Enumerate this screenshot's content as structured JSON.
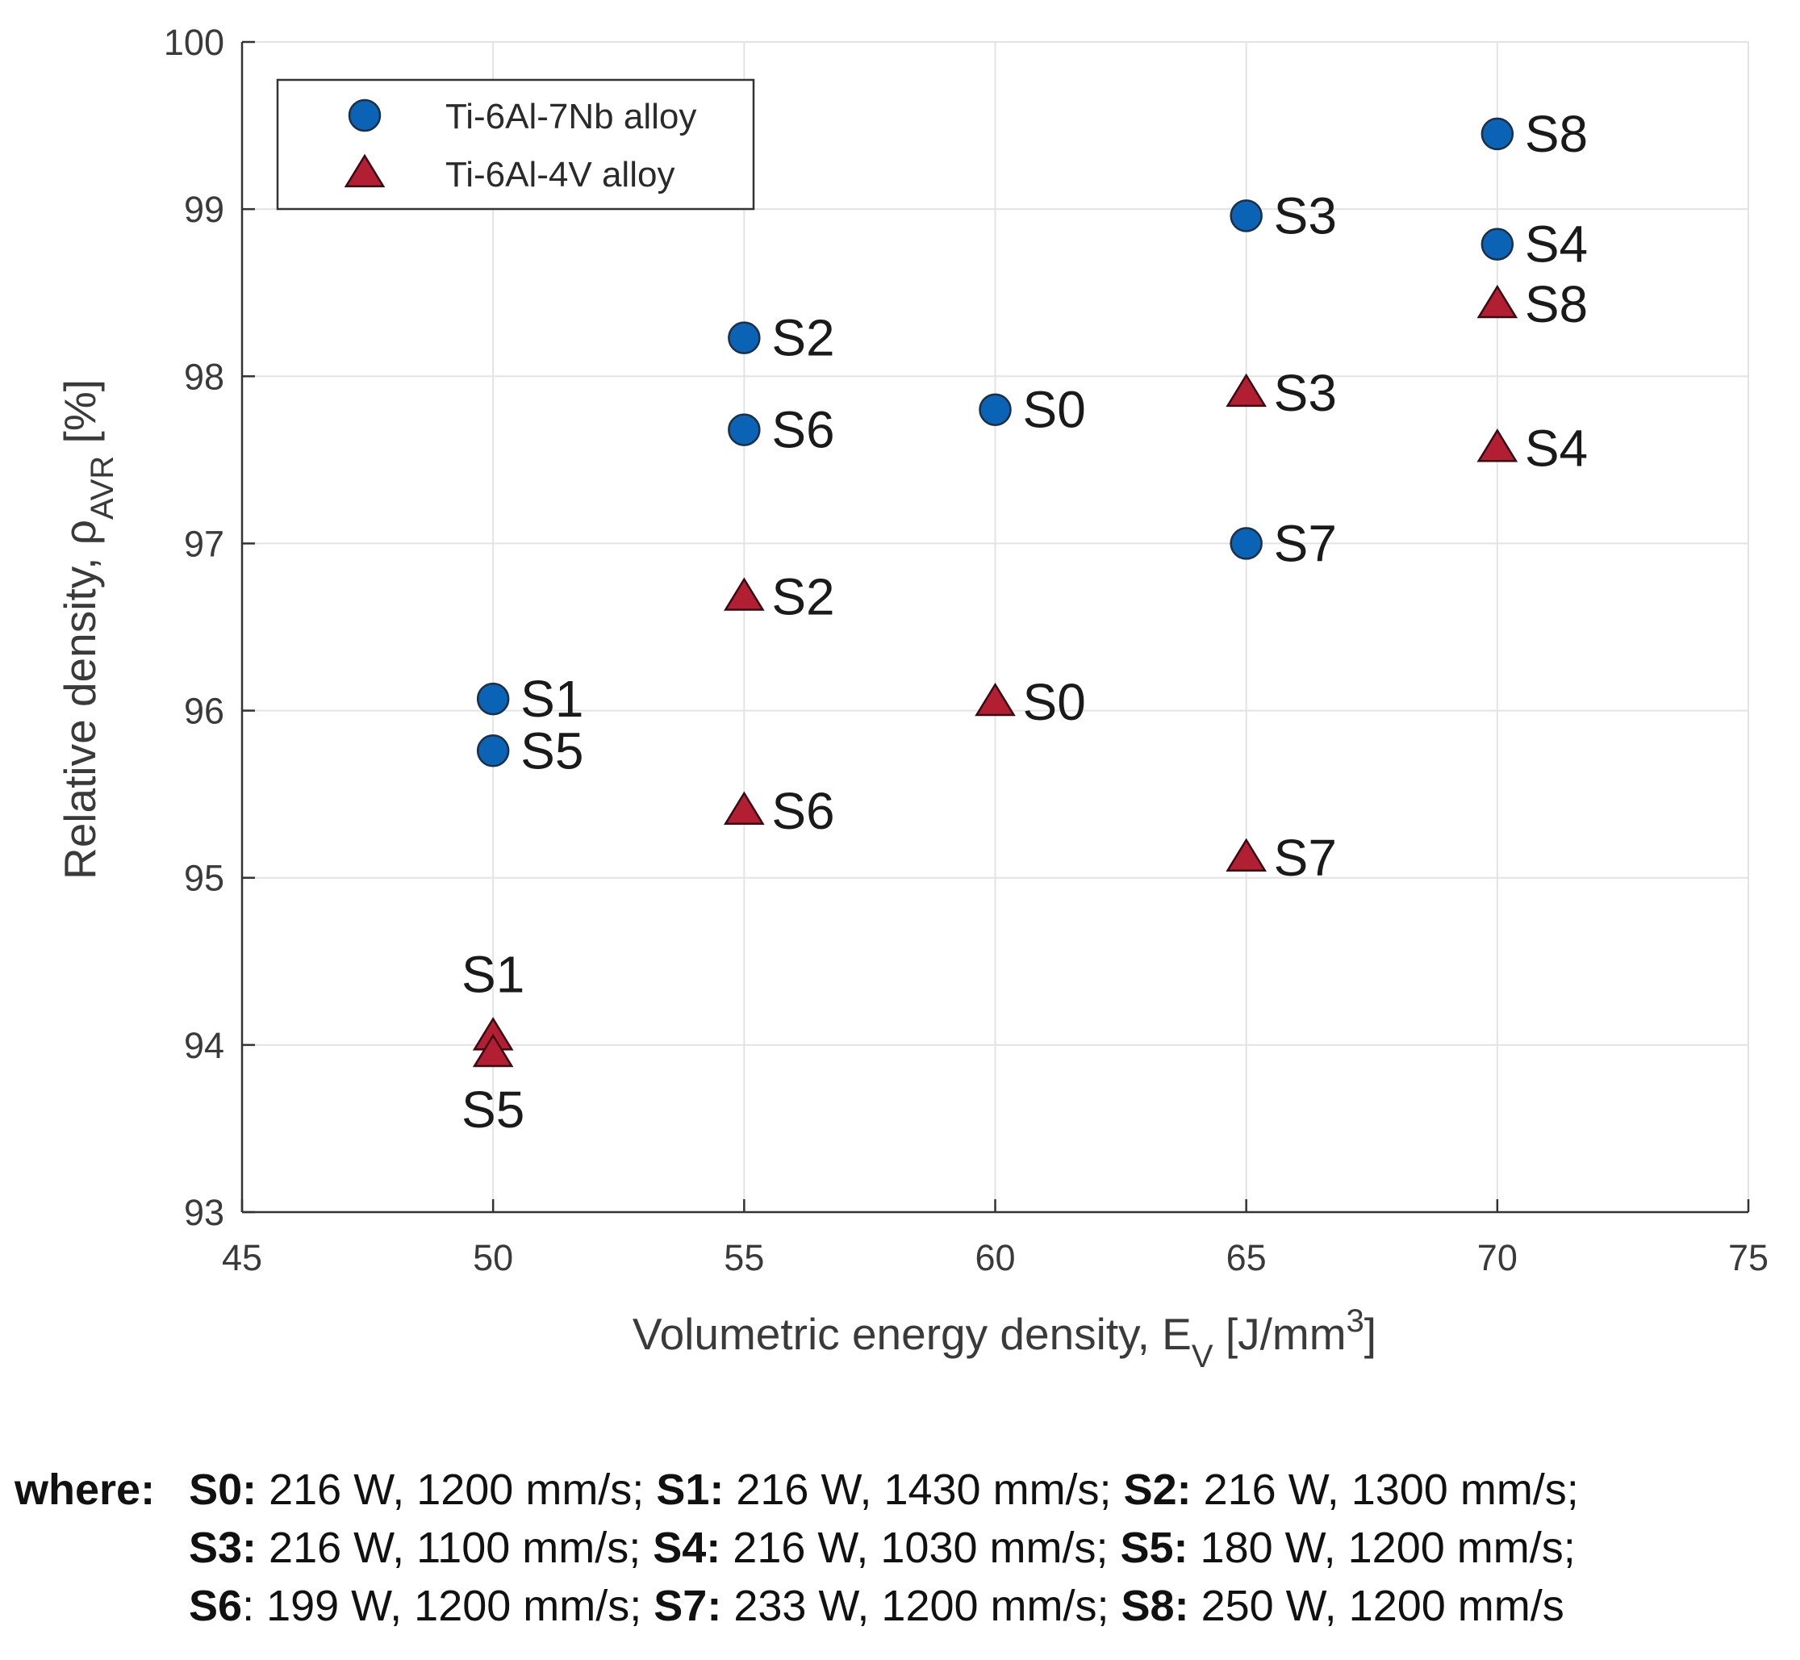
{
  "chart_data": {
    "type": "scatter",
    "xlabel": {
      "main": "Volumetric energy density, E",
      "subscript": "V",
      "unit_open": " [J/mm",
      "superscript": "3",
      "unit_close": "]"
    },
    "ylabel": {
      "main": "Relative density, ρ",
      "subscript": "AVR",
      "unit": " [%]"
    },
    "xlim": [
      45,
      75
    ],
    "ylim": [
      93,
      100
    ],
    "xticks": [
      "45",
      "50",
      "55",
      "60",
      "65",
      "70",
      "75"
    ],
    "yticks": [
      "93",
      "94",
      "95",
      "96",
      "97",
      "98",
      "99",
      "100"
    ],
    "grid": true,
    "legend_position": "top-left",
    "series": [
      {
        "name": "Ti-6Al-7Nb alloy",
        "marker": "circle",
        "color": "#0a63b4",
        "points": [
          {
            "label": "S0",
            "x": 60,
            "y": 97.8
          },
          {
            "label": "S1",
            "x": 50,
            "y": 96.07
          },
          {
            "label": "S2",
            "x": 55,
            "y": 98.23
          },
          {
            "label": "S3",
            "x": 65,
            "y": 98.96
          },
          {
            "label": "S4",
            "x": 70,
            "y": 98.79
          },
          {
            "label": "S5",
            "x": 50,
            "y": 95.76
          },
          {
            "label": "S6",
            "x": 55,
            "y": 97.68
          },
          {
            "label": "S7",
            "x": 65,
            "y": 97.0
          },
          {
            "label": "S8",
            "x": 70,
            "y": 99.45
          }
        ]
      },
      {
        "name": "Ti-6Al-4V alloy",
        "marker": "triangle",
        "color": "#b21f33",
        "points": [
          {
            "label": "S0",
            "x": 60,
            "y": 96.05
          },
          {
            "label": "S1",
            "x": 50,
            "y": 94.05
          },
          {
            "label": "S2",
            "x": 55,
            "y": 96.68
          },
          {
            "label": "S3",
            "x": 65,
            "y": 97.9
          },
          {
            "label": "S4",
            "x": 70,
            "y": 97.57
          },
          {
            "label": "S5",
            "x": 50,
            "y": 93.95
          },
          {
            "label": "S6",
            "x": 55,
            "y": 95.4
          },
          {
            "label": "S7",
            "x": 65,
            "y": 95.12
          },
          {
            "label": "S8",
            "x": 70,
            "y": 98.43
          }
        ]
      }
    ]
  },
  "footnote": {
    "prefix": "where:",
    "lines": [
      [
        {
          "key": "S0:",
          "value": " 216 W, 1200 mm/s;"
        },
        {
          "key": "S1:",
          "value": " 216 W, 1430 mm/s;"
        },
        {
          "key": "S2:",
          "value": " 216 W, 1300 mm/s;"
        }
      ],
      [
        {
          "key": "S3:",
          "value": " 216 W, 1100 mm/s;"
        },
        {
          "key": "S4:",
          "value": " 216 W, 1030 mm/s;"
        },
        {
          "key": "S5:",
          "value": " 180 W, 1200 mm/s;"
        }
      ],
      [
        {
          "key": "S6",
          "value": ": 199 W, 1200 mm/s;"
        },
        {
          "key": "S7:",
          "value": " 233 W, 1200 mm/s;"
        },
        {
          "key": "S8:",
          "value": " 250 W, 1200 mm/s"
        }
      ]
    ]
  }
}
